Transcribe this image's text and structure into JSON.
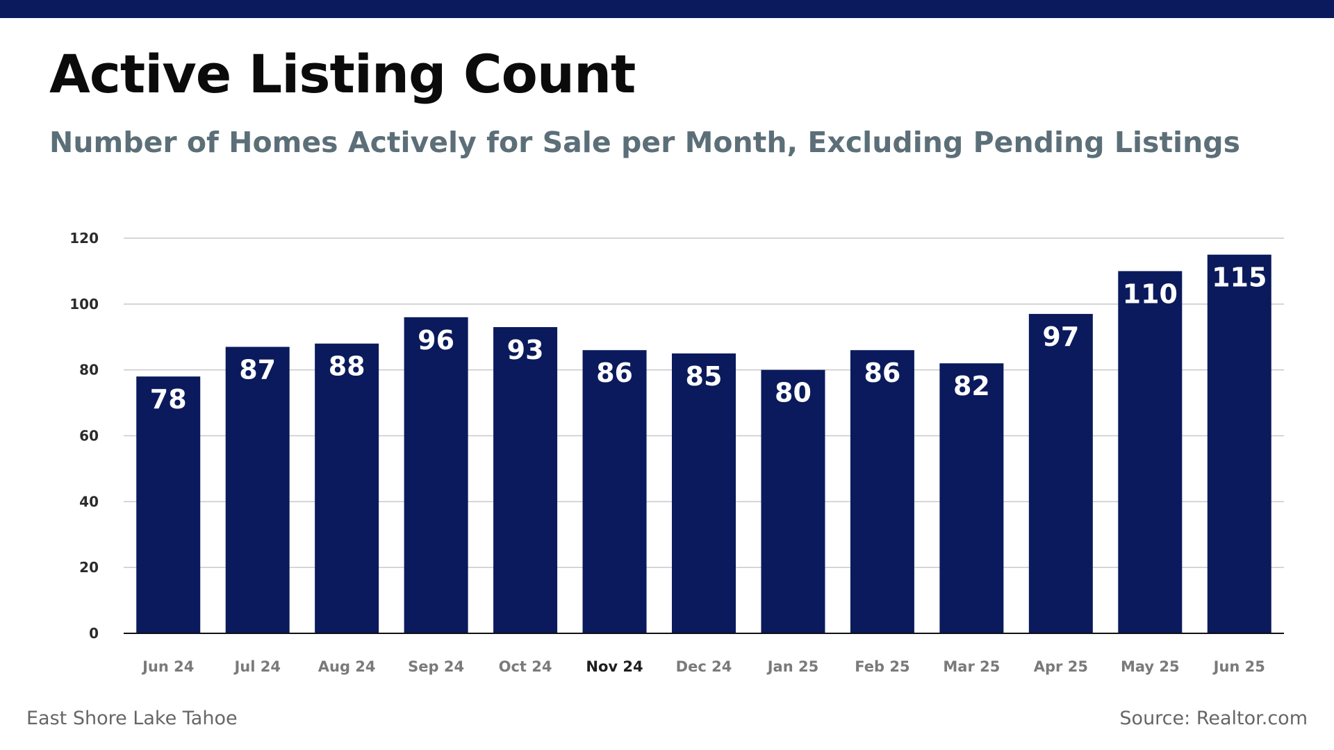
{
  "colors": {
    "bar": "#0a1a5c",
    "top_bar": "#0a1a5c",
    "title": "#0b0b0b",
    "subtitle": "#5c6f78",
    "gridline": "#c8c8c8",
    "axis": "#111111",
    "footer": "#666666"
  },
  "footer": {
    "left": "East Shore Lake Tahoe",
    "right": "Source: Realtor.com"
  },
  "chart_data": {
    "type": "bar",
    "title": "Active Listing Count",
    "subtitle": "Number of Homes Actively for Sale per Month, Excluding Pending Listings",
    "xlabel": "",
    "ylabel": "",
    "categories": [
      "Jun 24",
      "Jul 24",
      "Aug 24",
      "Sep 24",
      "Oct 24",
      "Nov 24",
      "Dec 24",
      "Jan 25",
      "Feb 25",
      "Mar 25",
      "Apr 25",
      "May 25",
      "Jun 25"
    ],
    "values": [
      78,
      87,
      88,
      96,
      93,
      86,
      85,
      80,
      86,
      82,
      97,
      110,
      115
    ],
    "data_labels": [
      "78",
      "87",
      "88",
      "96",
      "93",
      "86",
      "85",
      "80",
      "86",
      "82",
      "97",
      "110",
      "115"
    ],
    "ylim": [
      0,
      120
    ],
    "yticks": [
      0,
      20,
      40,
      60,
      80,
      100,
      120
    ],
    "grid": true,
    "legend": "none",
    "highlighted_category": "Nov 24"
  }
}
